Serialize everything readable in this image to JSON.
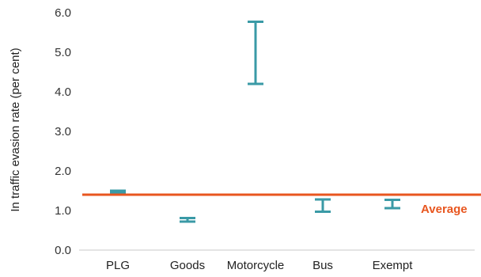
{
  "chart_data": {
    "type": "errorbar",
    "ylabel": "In traffic evasion rate (per cent)",
    "ylim": [
      0,
      6
    ],
    "yticks": [
      "0.0",
      "1.0",
      "2.0",
      "3.0",
      "4.0",
      "5.0",
      "6.0"
    ],
    "grid": false,
    "categories": [
      "PLG",
      "Goods",
      "Motorcycle",
      "Bus",
      "Exempt"
    ],
    "ranges": [
      {
        "category": "PLG",
        "low": 1.46,
        "high": 1.5
      },
      {
        "category": "Goods",
        "low": 0.72,
        "high": 0.81
      },
      {
        "category": "Motorcycle",
        "low": 4.2,
        "high": 5.77
      },
      {
        "category": "Bus",
        "low": 0.97,
        "high": 1.28
      },
      {
        "category": "Exempt",
        "low": 1.06,
        "high": 1.27
      }
    ],
    "average": {
      "label": "Average",
      "value": 1.4
    },
    "colors": {
      "range": "#3a9aa6",
      "average": "#e8561f",
      "axis": "#c8c8c8"
    }
  }
}
